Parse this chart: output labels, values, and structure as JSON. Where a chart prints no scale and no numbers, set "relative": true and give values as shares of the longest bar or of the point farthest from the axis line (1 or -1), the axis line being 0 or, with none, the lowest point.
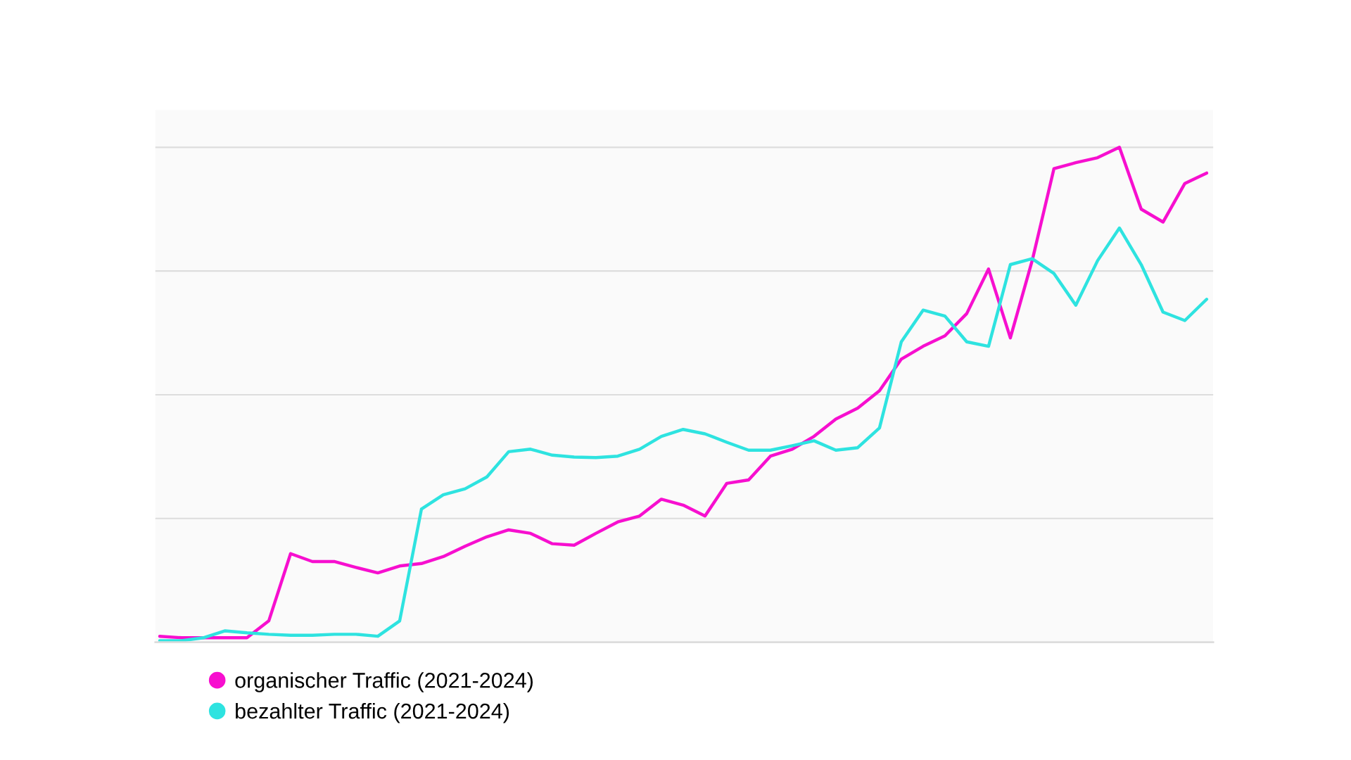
{
  "chart_data": {
    "type": "line",
    "relative": true,
    "grid": "y",
    "legend": "bottom left",
    "marker": "none",
    "line_style": "solid",
    "categories": [
      null,
      null,
      null,
      null,
      null,
      null,
      null,
      null,
      null,
      null,
      null,
      null,
      null,
      null,
      null,
      null,
      null,
      null,
      null,
      null,
      null,
      null,
      null,
      null,
      null,
      null,
      null,
      null,
      null,
      null,
      null,
      null,
      null,
      null,
      null,
      null,
      null,
      null,
      null,
      null,
      null,
      null,
      null,
      null,
      null,
      null,
      null,
      null,
      null
    ],
    "series": [
      {
        "name": "organischer Traffic (2021-2024)",
        "color": "#f70fcf",
        "values": [
          0.012,
          0.009,
          0.009,
          0.009,
          0.009,
          0.043,
          0.179,
          0.163,
          0.163,
          0.151,
          0.14,
          0.154,
          0.159,
          0.173,
          0.194,
          0.213,
          0.227,
          0.22,
          0.199,
          0.196,
          0.22,
          0.243,
          0.255,
          0.289,
          0.277,
          0.255,
          0.321,
          0.328,
          0.376,
          0.39,
          0.416,
          0.451,
          0.473,
          0.508,
          0.572,
          0.598,
          0.619,
          0.664,
          0.754,
          0.615,
          0.771,
          0.957,
          0.969,
          0.979,
          1.0,
          0.875,
          0.849,
          0.927,
          0.948
        ]
      },
      {
        "name": "bezahlter Traffic (2021-2024)",
        "color": "#2ee3e0",
        "values": [
          0.003,
          0.003,
          0.009,
          0.023,
          0.019,
          0.016,
          0.014,
          0.014,
          0.016,
          0.016,
          0.012,
          0.043,
          0.269,
          0.298,
          0.31,
          0.334,
          0.385,
          0.39,
          0.378,
          0.374,
          0.373,
          0.376,
          0.39,
          0.416,
          0.43,
          0.421,
          0.404,
          0.388,
          0.388,
          0.397,
          0.407,
          0.388,
          0.393,
          0.433,
          0.607,
          0.671,
          0.659,
          0.607,
          0.598,
          0.763,
          0.775,
          0.745,
          0.681,
          0.771,
          0.837,
          0.763,
          0.667,
          0.65,
          0.693
        ]
      }
    ]
  }
}
